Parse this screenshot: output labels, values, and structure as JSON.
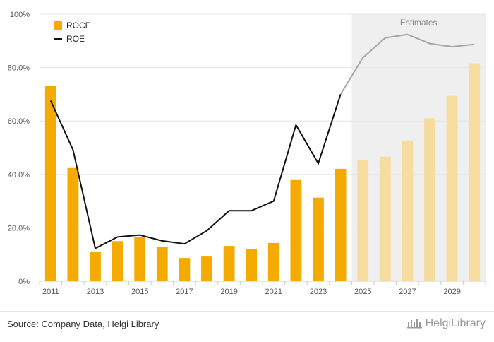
{
  "chart_data": {
    "type": "bar",
    "x": [
      2011,
      2012,
      2013,
      2014,
      2015,
      2016,
      2017,
      2018,
      2019,
      2020,
      2021,
      2022,
      2023,
      2024,
      2025,
      2026,
      2027,
      2028,
      2029,
      2030
    ],
    "x_tick_labels": [
      "2011",
      "2013",
      "2015",
      "2017",
      "2019",
      "2021",
      "2023",
      "2025",
      "2027",
      "2029"
    ],
    "y_tick_labels": [
      "0%",
      "20.0%",
      "40.0%",
      "60.0%",
      "80.0%",
      "100%"
    ],
    "ylim": [
      0,
      100
    ],
    "series": [
      {
        "name": "ROCE",
        "type": "bar",
        "color": "#f5aa00",
        "estimate_color": "#f7dca0",
        "values": [
          73.2,
          42.4,
          11.1,
          15.0,
          16.4,
          12.7,
          8.7,
          9.5,
          13.2,
          12.1,
          14.3,
          37.9,
          31.3,
          42.1,
          45.3,
          46.6,
          52.7,
          61.0,
          69.4,
          81.6
        ]
      },
      {
        "name": "ROE",
        "type": "line",
        "color": "#111111",
        "estimate_color": "#a6a6a6",
        "values": [
          67.6,
          49.2,
          12.3,
          16.6,
          17.3,
          15.1,
          14.0,
          18.9,
          26.4,
          26.4,
          30.0,
          58.5,
          44.1,
          70.0,
          83.7,
          91.1,
          92.4,
          89.0,
          87.8,
          88.7
        ]
      }
    ],
    "estimates_from": 2025,
    "estimates_label": "Estimates",
    "legend": {
      "placement": "top-left"
    },
    "grid": true,
    "xlabel": "",
    "ylabel": ""
  },
  "footer": {
    "source": "Source: Company Data, Helgi Library",
    "brand": "HelgiLibrary"
  }
}
